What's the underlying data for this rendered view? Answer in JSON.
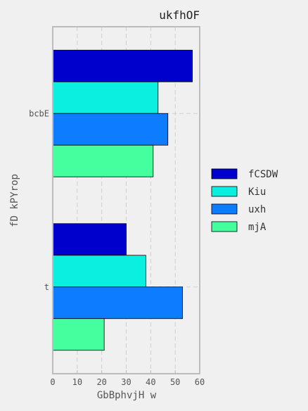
{
  "chart_data": {
    "type": "bar",
    "orientation": "horizontal",
    "title": "ukfhOF",
    "xlabel": "GbBphvjH w",
    "ylabel": "fD  kPYrop",
    "categories": [
      "bcbE",
      "t"
    ],
    "series": [
      {
        "name": "fCSDW",
        "color": "#0000cd",
        "values": [
          57,
          30
        ]
      },
      {
        "name": "Kiu",
        "color": "#0aefe0",
        "values": [
          43,
          38
        ]
      },
      {
        "name": "uxh",
        "color": "#0d7cff",
        "values": [
          47,
          53
        ]
      },
      {
        "name": "mjA",
        "color": "#45ff9e",
        "values": [
          41,
          21
        ]
      }
    ],
    "xlim": [
      0,
      60
    ],
    "xticks": [
      "0",
      "10",
      "20",
      "30",
      "40",
      "50",
      "60"
    ],
    "grid": true,
    "legend": "right"
  }
}
